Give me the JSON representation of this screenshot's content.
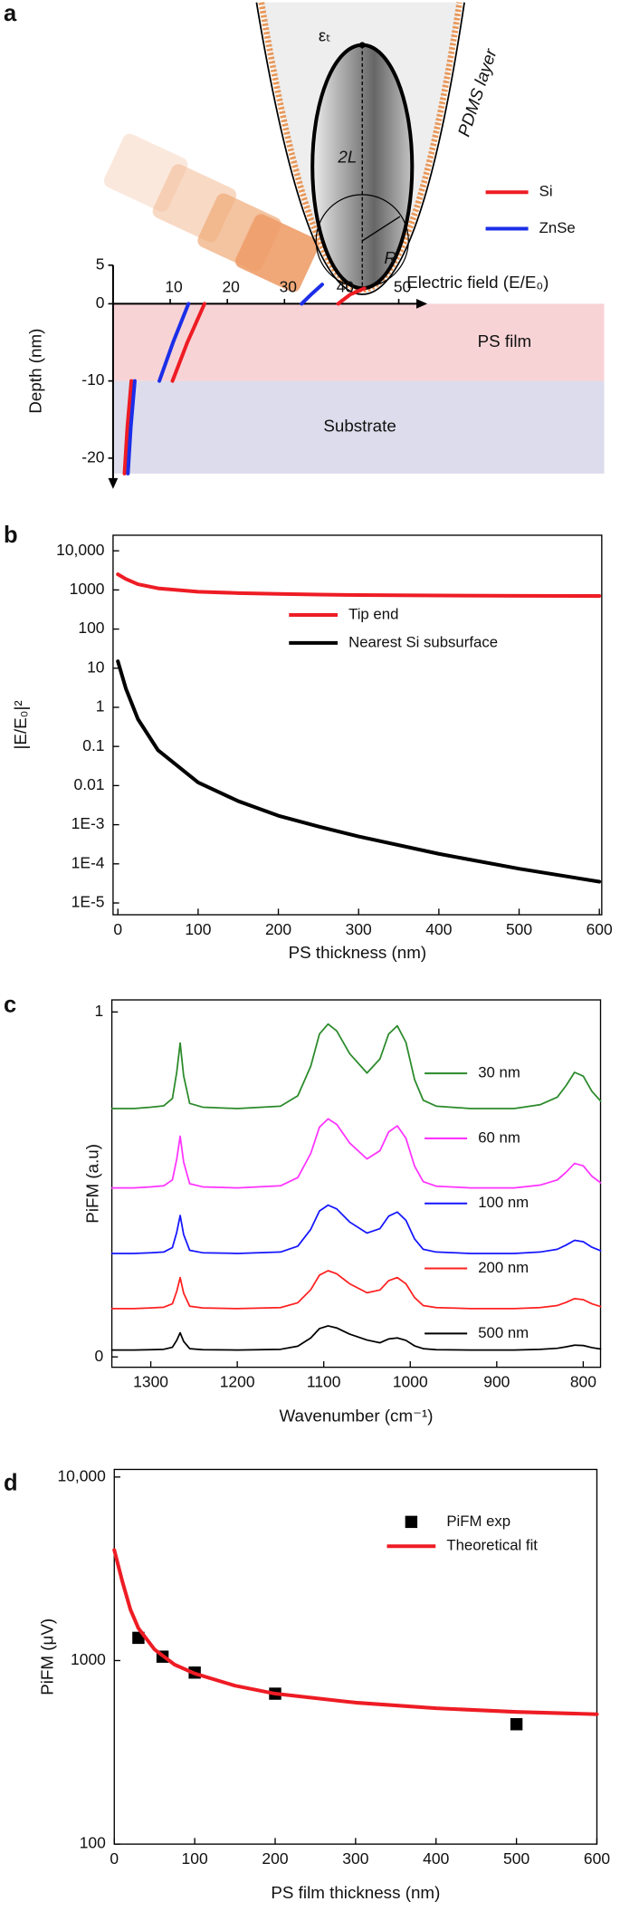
{
  "chart_data": [
    {
      "type": "line",
      "panel": "a",
      "frame": false,
      "x_label": "Electric field (E/E₀)",
      "y_label": "Depth (nm)",
      "xlim": [
        0,
        55
      ],
      "ylim": [
        -24,
        5
      ],
      "xticks": [
        10,
        20,
        30,
        40,
        50
      ],
      "yticks": [
        5,
        0,
        -10,
        -20
      ],
      "regions": [
        {
          "label": "PS film",
          "from": 0,
          "to": -10,
          "color": "#f8d3d6"
        },
        {
          "label": "Substrate",
          "from": -10,
          "to": -22,
          "color": "#dcdcec"
        }
      ],
      "annotations": [
        "εₜ",
        "2L",
        "R",
        "PDMS layer"
      ],
      "legend": "top right",
      "series": [
        {
          "name": "Si",
          "color": "#ee1c24",
          "x": [
            2.0,
            2.5,
            3.2,
            null,
            10.4,
            13,
            16,
            null,
            39.4,
            41.5,
            44
          ],
          "values": [
            -22,
            -16,
            -10,
            null,
            -10,
            -5,
            0,
            null,
            0,
            1.2,
            2
          ]
        },
        {
          "name": "ZnSe",
          "color": "#1c2ee8",
          "x": [
            2.6,
            3.1,
            3.8,
            null,
            8.1,
            10.5,
            13.2,
            null,
            33,
            34.8,
            36.6
          ],
          "values": [
            -22,
            -16,
            -10,
            null,
            -10,
            -5,
            0,
            null,
            0,
            1.3,
            2.5
          ]
        }
      ]
    },
    {
      "type": "line",
      "panel": "b",
      "frame": true,
      "log_y": true,
      "x_label": "PS thickness (nm)",
      "y_label": "|E/E₀|²",
      "xlim": [
        -6,
        603
      ],
      "ylim": [
        5e-06,
        25000
      ],
      "xticks": [
        0,
        100,
        200,
        300,
        400,
        500,
        600
      ],
      "yticks": [
        {
          "value": 10000,
          "label": "10,000"
        },
        1000,
        100,
        10,
        1,
        0.1,
        0.01,
        {
          "value": 0.001,
          "label": "1E-3"
        },
        {
          "value": 0.0001,
          "label": "1E-4"
        },
        {
          "value": 1e-05,
          "label": "1E-5"
        }
      ],
      "legend": "upper center",
      "x": [
        0,
        10,
        25,
        50,
        100,
        150,
        200,
        250,
        300,
        400,
        500,
        600
      ],
      "series": [
        {
          "name": "Tip end",
          "color": "#ee1c24",
          "values": [
            2500,
            1900,
            1400,
            1100,
            900,
            830,
            790,
            760,
            740,
            720,
            705,
            700
          ]
        },
        {
          "name": "Nearest Si subsurface",
          "color": "#000000",
          "values": [
            15,
            3,
            0.5,
            0.08,
            0.012,
            0.004,
            0.0017,
            0.0009,
            0.0005,
            0.00018,
            7.5e-05,
            3.5e-05
          ]
        }
      ]
    },
    {
      "type": "line",
      "panel": "c",
      "frame": true,
      "x_label": "Wavenumber (cm⁻¹)",
      "y_label": "PiFM (a.u)",
      "xlim": [
        1345,
        780
      ],
      "ylim": [
        -0.03,
        1.035
      ],
      "xticks": [
        1300,
        1200,
        1100,
        1000,
        900,
        800
      ],
      "yticks": [
        0,
        1
      ],
      "legend": "center right",
      "x": [
        1345,
        1320,
        1300,
        1285,
        1275,
        1270,
        1266,
        1262,
        1255,
        1240,
        1200,
        1150,
        1130,
        1115,
        1105,
        1095,
        1085,
        1070,
        1050,
        1035,
        1025,
        1015,
        1005,
        995,
        985,
        970,
        930,
        880,
        850,
        830,
        820,
        810,
        800,
        790,
        780
      ],
      "series": [
        {
          "name": "30 nm",
          "color": "#2a8a2a",
          "values": [
            0.72,
            0.72,
            0.724,
            0.728,
            0.749,
            0.825,
            0.91,
            0.815,
            0.735,
            0.724,
            0.72,
            0.727,
            0.757,
            0.843,
            0.936,
            0.965,
            0.945,
            0.879,
            0.823,
            0.864,
            0.936,
            0.96,
            0.912,
            0.804,
            0.744,
            0.727,
            0.72,
            0.72,
            0.731,
            0.753,
            0.786,
            0.825,
            0.814,
            0.77,
            0.742
          ]
        },
        {
          "name": "60 nm",
          "color": "#ff33ff",
          "values": [
            0.49,
            0.49,
            0.493,
            0.496,
            0.513,
            0.573,
            0.64,
            0.565,
            0.502,
            0.493,
            0.49,
            0.496,
            0.52,
            0.59,
            0.666,
            0.69,
            0.674,
            0.62,
            0.574,
            0.598,
            0.652,
            0.67,
            0.634,
            0.553,
            0.508,
            0.495,
            0.49,
            0.49,
            0.498,
            0.513,
            0.535,
            0.561,
            0.554,
            0.524,
            0.505
          ]
        },
        {
          "name": "100 nm",
          "color": "#1515ff",
          "values": [
            0.3,
            0.3,
            0.302,
            0.304,
            0.317,
            0.361,
            0.41,
            0.355,
            0.309,
            0.302,
            0.3,
            0.304,
            0.321,
            0.37,
            0.423,
            0.44,
            0.429,
            0.391,
            0.359,
            0.372,
            0.408,
            0.42,
            0.396,
            0.342,
            0.312,
            0.304,
            0.3,
            0.3,
            0.304,
            0.312,
            0.324,
            0.338,
            0.334,
            0.318,
            0.308
          ]
        },
        {
          "name": "200 nm",
          "color": "#ff2020",
          "values": [
            0.14,
            0.14,
            0.142,
            0.144,
            0.154,
            0.19,
            0.23,
            0.185,
            0.147,
            0.142,
            0.14,
            0.143,
            0.157,
            0.195,
            0.237,
            0.25,
            0.241,
            0.212,
            0.186,
            0.194,
            0.221,
            0.23,
            0.212,
            0.172,
            0.149,
            0.143,
            0.14,
            0.14,
            0.143,
            0.149,
            0.158,
            0.169,
            0.166,
            0.154,
            0.146
          ]
        },
        {
          "name": "500 nm",
          "color": "#000000",
          "values": [
            0.02,
            0.02,
            0.021,
            0.022,
            0.028,
            0.048,
            0.07,
            0.045,
            0.024,
            0.021,
            0.02,
            0.022,
            0.031,
            0.055,
            0.082,
            0.09,
            0.084,
            0.066,
            0.049,
            0.041,
            0.052,
            0.055,
            0.048,
            0.032,
            0.024,
            0.021,
            0.02,
            0.02,
            0.022,
            0.025,
            0.029,
            0.034,
            0.033,
            0.027,
            0.023
          ]
        }
      ]
    },
    {
      "type": "line",
      "panel": "d",
      "frame": true,
      "log_y": true,
      "x_label": "PS film thickness (nm)",
      "y_label": "PiFM (μV)",
      "xlim": [
        0,
        600
      ],
      "ylim": [
        100,
        11000
      ],
      "xticks": [
        0,
        100,
        200,
        300,
        400,
        500,
        600
      ],
      "yticks": [
        {
          "value": 10000,
          "label": "10,000"
        },
        1000,
        100
      ],
      "legend": "upper right",
      "series": [
        {
          "name": "PiFM exp",
          "color": "#000000",
          "style": "square",
          "x": [
            30,
            60,
            100,
            200,
            500
          ],
          "values": [
            1330,
            1050,
            860,
            660,
            450
          ]
        },
        {
          "name": "Theoretical fit",
          "color": "#ee1c24",
          "style": "line",
          "x": [
            0,
            10,
            20,
            30,
            50,
            75,
            100,
            150,
            200,
            300,
            400,
            500,
            600
          ],
          "values": [
            4000,
            2700,
            1900,
            1500,
            1150,
            950,
            850,
            730,
            660,
            590,
            550,
            525,
            510
          ]
        }
      ]
    }
  ]
}
